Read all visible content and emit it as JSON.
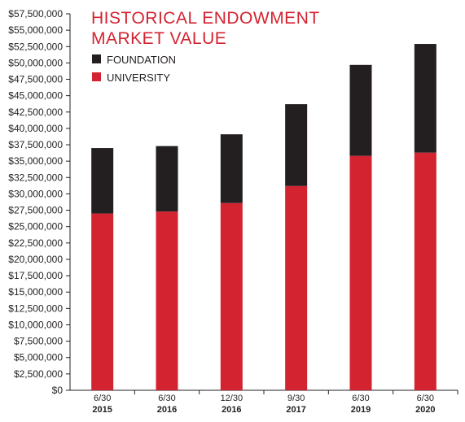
{
  "chart_data": {
    "type": "bar",
    "stacked": true,
    "title_lines": [
      "HISTORICAL ENDOWMENT",
      "MARKET VALUE"
    ],
    "categories": [
      {
        "top": "6/30",
        "bottom": "2015"
      },
      {
        "top": "6/30",
        "bottom": "2016"
      },
      {
        "top": "12/30",
        "bottom": "2016"
      },
      {
        "top": "9/30",
        "bottom": "2017"
      },
      {
        "top": "6/30",
        "bottom": "2019"
      },
      {
        "top": "6/30",
        "bottom": "2020"
      }
    ],
    "series": [
      {
        "name": "UNIVERSITY",
        "color": "#d42330",
        "values": [
          27000000,
          27300000,
          28600000,
          31200000,
          35800000,
          36300000
        ]
      },
      {
        "name": "FOUNDATION",
        "color": "#231f20",
        "values": [
          10000000,
          10000000,
          10500000,
          12500000,
          13900000,
          16600000
        ]
      }
    ],
    "legend": [
      {
        "name": "FOUNDATION",
        "color": "#231f20"
      },
      {
        "name": "UNIVERSITY",
        "color": "#d42330"
      }
    ],
    "legend_position": "top-left",
    "ylim": [
      0,
      57500000
    ],
    "y_ticks": [
      {
        "value": 57500000,
        "label": "$57,500,000"
      },
      {
        "value": 55000000,
        "label": "$55,000,000"
      },
      {
        "value": 52500000,
        "label": "$52,500,000"
      },
      {
        "value": 50000000,
        "label": "$50,000,000"
      },
      {
        "value": 47500000,
        "label": "$47,500,000"
      },
      {
        "value": 45000000,
        "label": "$45,000,000"
      },
      {
        "value": 42500000,
        "label": "$42,500,000"
      },
      {
        "value": 40000000,
        "label": "$40,000,000"
      },
      {
        "value": 37500000,
        "label": "$37,500,000"
      },
      {
        "value": 35000000,
        "label": "$35,000,000"
      },
      {
        "value": 32500000,
        "label": "$32,500,000"
      },
      {
        "value": 30000000,
        "label": "$30,000,000"
      },
      {
        "value": 27500000,
        "label": "$27,500,000"
      },
      {
        "value": 25000000,
        "label": "$25,000,000"
      },
      {
        "value": 22500000,
        "label": "$22,500,000"
      },
      {
        "value": 20000000,
        "label": "$20,000,000"
      },
      {
        "value": 17500000,
        "label": "$17,500,000"
      },
      {
        "value": 15000000,
        "label": "$15,000,000"
      },
      {
        "value": 12500000,
        "label": "$12,500,000"
      },
      {
        "value": 10000000,
        "label": "$10,000,000"
      },
      {
        "value": 7500000,
        "label": "$7,500,000"
      },
      {
        "value": 5000000,
        "label": "$5,000,000"
      },
      {
        "value": 2500000,
        "label": "$2,500,000"
      },
      {
        "value": 0,
        "label": "$0"
      }
    ],
    "grid": false
  }
}
